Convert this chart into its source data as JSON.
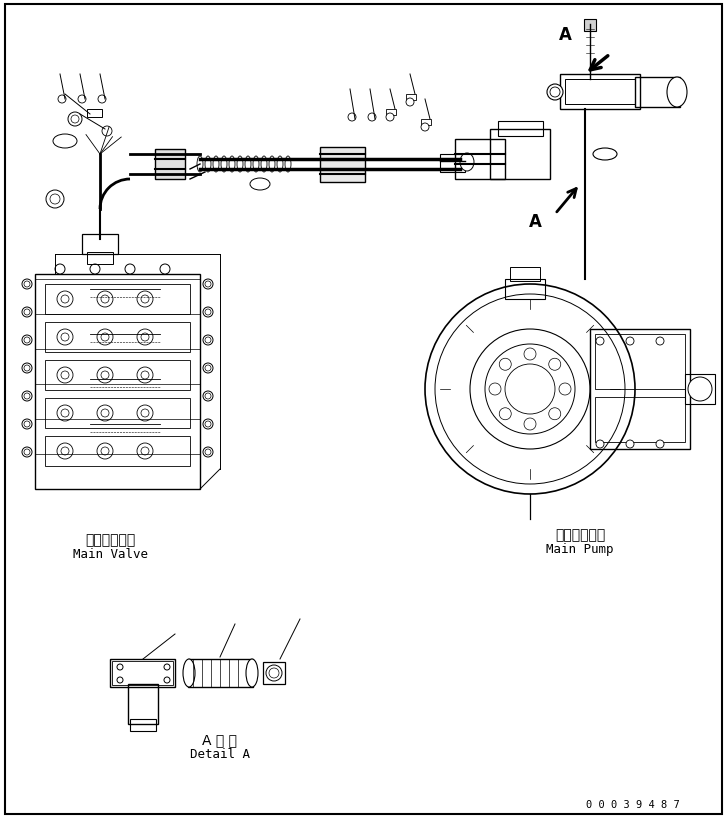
{
  "title": "",
  "background_color": "#ffffff",
  "line_color": "#000000",
  "text_color": "#000000",
  "label_main_valve_jp": "メインバルブ",
  "label_main_valve_en": "Main Valve",
  "label_main_pump_jp": "メインポンプ",
  "label_main_pump_en": "Main Pump",
  "label_detail_jp": "A 詳 細",
  "label_detail_en": "Detail A",
  "label_A": "A",
  "serial_number": "0 0 0 3 9 4 8 7",
  "fig_width": 7.27,
  "fig_height": 8.2
}
